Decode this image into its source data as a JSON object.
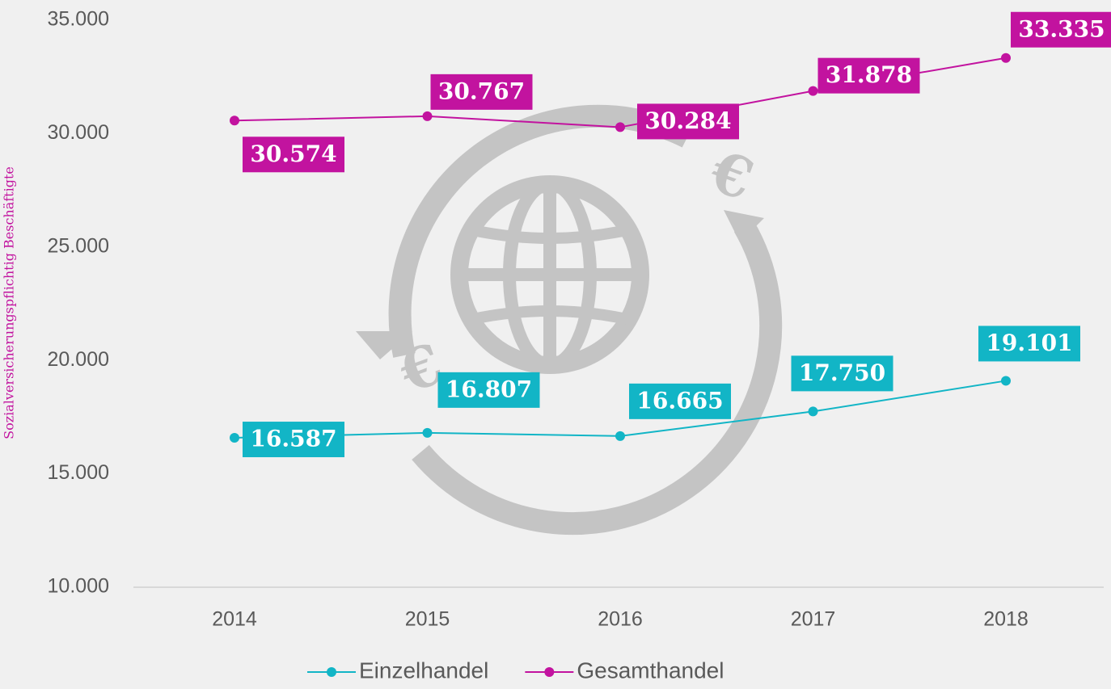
{
  "chart_data": {
    "type": "line",
    "y_label": "Sozialversicherungspflichtig Beschäftigte",
    "categories": [
      "2014",
      "2015",
      "2016",
      "2017",
      "2018"
    ],
    "series": [
      {
        "name": "Einzelhandel",
        "color": "#12b5c6",
        "values": [
          16587,
          16807,
          16665,
          17750,
          19101
        ],
        "value_labels": [
          "16.587",
          "16.807",
          "16.665",
          "17.750",
          "19.101"
        ]
      },
      {
        "name": "Gesamthandel",
        "color": "#c2139f",
        "values": [
          30574,
          30767,
          30284,
          31878,
          33335
        ],
        "value_labels": [
          "30.574",
          "30.767",
          "30.284",
          "31.878",
          "33.335"
        ]
      }
    ],
    "ylim": [
      10000,
      35000
    ],
    "yticks": [
      {
        "value": 10000,
        "label": "10.000"
      },
      {
        "value": 15000,
        "label": "15.000"
      },
      {
        "value": 20000,
        "label": "20.000"
      },
      {
        "value": 25000,
        "label": "25.000"
      },
      {
        "value": 30000,
        "label": "30.000"
      },
      {
        "value": 35000,
        "label": "35.000"
      }
    ],
    "legend": "bottom"
  }
}
